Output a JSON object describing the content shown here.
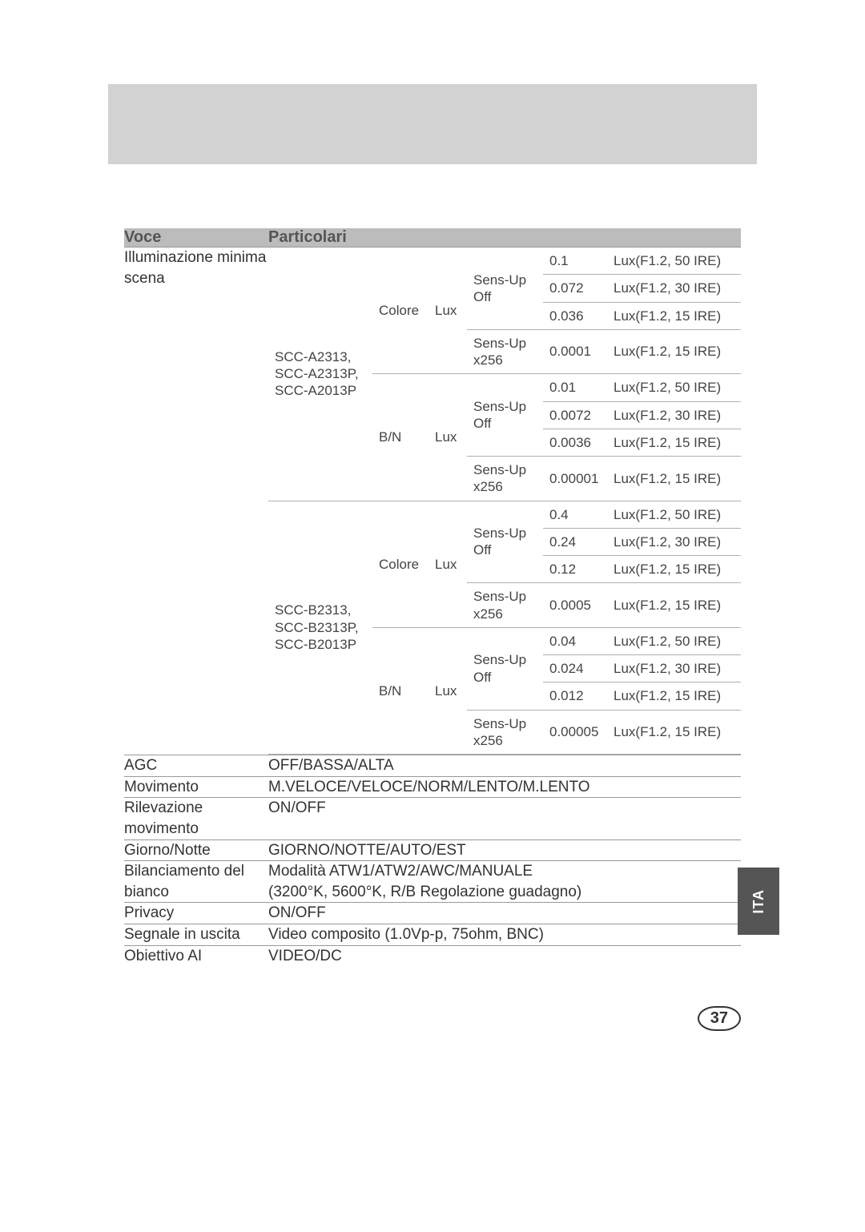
{
  "colors": {
    "gray_bar": "#d2d2d2",
    "header_bg": "#bcbcbc",
    "header_fg": "#555555",
    "border": "#999999",
    "border_light": "#b0b0b0",
    "text": "#333333",
    "tab_bg": "#555555",
    "tab_fg": "#ffffff"
  },
  "header": {
    "voce": "Voce",
    "particolari": "Particolari"
  },
  "side_tab": "ITA",
  "page_number": "37",
  "illum_label": "Illuminazione minima scena",
  "illum": {
    "groups": [
      {
        "model": "SCC-A2313,\nSCC-A2313P,\nSCC-A2013P",
        "modes": [
          {
            "mode": "Colore",
            "lux": "Lux",
            "sens": [
              {
                "label": "Sens-Up Off",
                "rows": [
                  {
                    "v": "0.1",
                    "c": "Lux(F1.2, 50 IRE)"
                  },
                  {
                    "v": "0.072",
                    "c": "Lux(F1.2, 30 IRE)"
                  },
                  {
                    "v": "0.036",
                    "c": "Lux(F1.2, 15 IRE)"
                  }
                ]
              },
              {
                "label": "Sens-Up x256",
                "rows": [
                  {
                    "v": "0.0001",
                    "c": "Lux(F1.2, 15 IRE)"
                  }
                ]
              }
            ]
          },
          {
            "mode": "B/N",
            "lux": "Lux",
            "sens": [
              {
                "label": "Sens-Up Off",
                "rows": [
                  {
                    "v": "0.01",
                    "c": "Lux(F1.2, 50 IRE)"
                  },
                  {
                    "v": "0.0072",
                    "c": "Lux(F1.2, 30 IRE)"
                  },
                  {
                    "v": "0.0036",
                    "c": "Lux(F1.2, 15 IRE)"
                  }
                ]
              },
              {
                "label": "Sens-Up x256",
                "rows": [
                  {
                    "v": "0.00001",
                    "c": "Lux(F1.2, 15 IRE)"
                  }
                ]
              }
            ]
          }
        ]
      },
      {
        "model": "SCC-B2313,\nSCC-B2313P,\nSCC-B2013P",
        "modes": [
          {
            "mode": "Colore",
            "lux": "Lux",
            "sens": [
              {
                "label": "Sens-Up Off",
                "rows": [
                  {
                    "v": "0.4",
                    "c": "Lux(F1.2, 50 IRE)"
                  },
                  {
                    "v": "0.24",
                    "c": "Lux(F1.2, 30 IRE)"
                  },
                  {
                    "v": "0.12",
                    "c": "Lux(F1.2, 15 IRE)"
                  }
                ]
              },
              {
                "label": "Sens-Up x256",
                "rows": [
                  {
                    "v": "0.0005",
                    "c": "Lux(F1.2, 15 IRE)"
                  }
                ]
              }
            ]
          },
          {
            "mode": "B/N",
            "lux": "Lux",
            "sens": [
              {
                "label": "Sens-Up Off",
                "rows": [
                  {
                    "v": "0.04",
                    "c": "Lux(F1.2, 50 IRE)"
                  },
                  {
                    "v": "0.024",
                    "c": "Lux(F1.2, 30 IRE)"
                  },
                  {
                    "v": "0.012",
                    "c": "Lux(F1.2, 15 IRE)"
                  }
                ]
              },
              {
                "label": "Sens-Up x256",
                "rows": [
                  {
                    "v": "0.00005",
                    "c": "Lux(F1.2, 15 IRE)"
                  }
                ]
              }
            ]
          }
        ]
      }
    ]
  },
  "rows": [
    {
      "voce": "AGC",
      "part": "OFF/BASSA/ALTA"
    },
    {
      "voce": "Movimento",
      "part": "M.VELOCE/VELOCE/NORM/LENTO/M.LENTO"
    },
    {
      "voce": "Rilevazione movimento",
      "part": "ON/OFF"
    },
    {
      "voce": "Giorno/Notte",
      "part": "GIORNO/NOTTE/AUTO/EST"
    },
    {
      "voce": "Bilanciamento del bianco",
      "part": "Modalità ATW1/ATW2/AWC/MANUALE\n(3200°K, 5600°K, R/B Regolazione guadagno)"
    },
    {
      "voce": "Privacy",
      "part": "ON/OFF"
    },
    {
      "voce": "Segnale in uscita",
      "part": "Video composito (1.0Vp-p, 75ohm, BNC)"
    },
    {
      "voce": "Obiettivo AI",
      "part": "VIDEO/DC"
    }
  ]
}
